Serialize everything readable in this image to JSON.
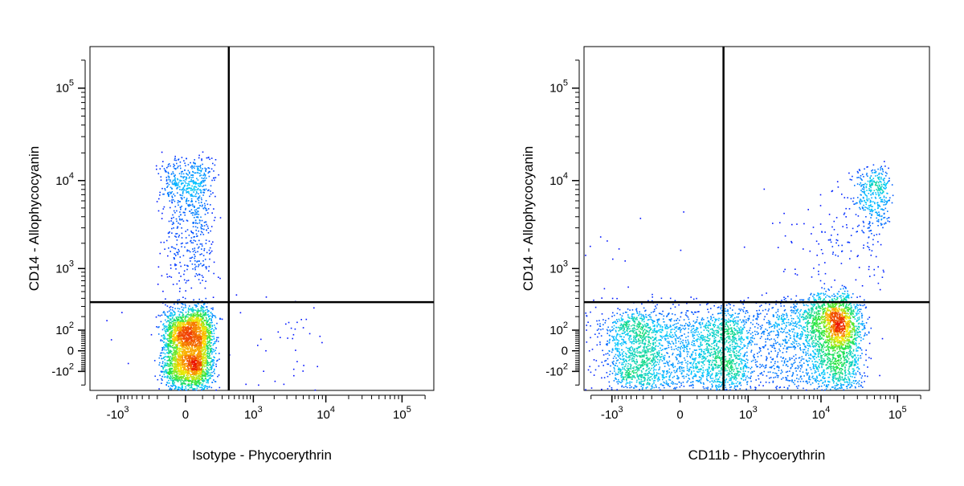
{
  "chart_data": [
    {
      "type": "scatter",
      "subtype": "density-flow-cytometry",
      "xlabel": "Isotype - Phycoerythrin",
      "ylabel": "CD14 - Allophycocyanin",
      "x_scale": "biexponential",
      "y_scale": "biexponential",
      "x_ticks": [
        {
          "value": -1000,
          "base": "-10",
          "exp": "3"
        },
        {
          "value": 0,
          "base": "0",
          "exp": ""
        },
        {
          "value": 1000,
          "base": "10",
          "exp": "3"
        },
        {
          "value": 10000,
          "base": "10",
          "exp": "4"
        },
        {
          "value": 100000,
          "base": "10",
          "exp": "5"
        }
      ],
      "y_ticks": [
        {
          "value": -100,
          "base": "-10",
          "exp": "2"
        },
        {
          "value": 0,
          "base": "0",
          "exp": ""
        },
        {
          "value": 100,
          "base": "10",
          "exp": "2"
        },
        {
          "value": 1000,
          "base": "10",
          "exp": "3"
        },
        {
          "value": 10000,
          "base": "10",
          "exp": "4"
        },
        {
          "value": 100000,
          "base": "10",
          "exp": "5"
        }
      ],
      "quadrant_gate": {
        "x": 400,
        "y": 350
      },
      "populations": [
        {
          "name": "",
          "x_center": 20,
          "y_center": 15,
          "x_spread": 80,
          "y_spread": 120,
          "count": 3200
        },
        {
          "name": "",
          "x_center": 20,
          "y_center": 7500,
          "x_spread": 90,
          "y_spread": 4500,
          "count": 650
        },
        {
          "name": "",
          "x_center": 20,
          "y_center": 1200,
          "x_spread": 80,
          "y_spread": 900,
          "count": 180
        },
        {
          "name": "",
          "x_center": 2500,
          "y_center": 60,
          "x_spread": 2500,
          "y_spread": 140,
          "count": 45
        }
      ]
    },
    {
      "type": "scatter",
      "subtype": "density-flow-cytometry",
      "xlabel": "CD11b - Phycoerythrin",
      "ylabel": "CD14 - Allophycocyanin",
      "x_scale": "biexponential",
      "y_scale": "biexponential",
      "x_ticks": [
        {
          "value": -1000,
          "base": "-10",
          "exp": "3"
        },
        {
          "value": 0,
          "base": "0",
          "exp": ""
        },
        {
          "value": 1000,
          "base": "10",
          "exp": "3"
        },
        {
          "value": 10000,
          "base": "10",
          "exp": "4"
        },
        {
          "value": 100000,
          "base": "10",
          "exp": "5"
        }
      ],
      "y_ticks": [
        {
          "value": -100,
          "base": "-10",
          "exp": "2"
        },
        {
          "value": 0,
          "base": "0",
          "exp": ""
        },
        {
          "value": 100,
          "base": "10",
          "exp": "2"
        },
        {
          "value": 1000,
          "base": "10",
          "exp": "3"
        },
        {
          "value": 10000,
          "base": "10",
          "exp": "4"
        },
        {
          "value": 100000,
          "base": "10",
          "exp": "5"
        }
      ],
      "quadrant_gate": {
        "x": 400,
        "y": 350
      },
      "populations": [
        {
          "name": "",
          "x_center": 0,
          "y_center": 0,
          "x_spread": 450,
          "y_spread": 130,
          "count": 2600
        },
        {
          "name": "",
          "x_center": 13000,
          "y_center": 90,
          "x_spread": 9000,
          "y_spread": 160,
          "count": 2800
        },
        {
          "name": "",
          "x_center": 48000,
          "y_center": 7000,
          "x_spread": 15000,
          "y_spread": 3500,
          "count": 450
        },
        {
          "name": "",
          "x_center": 8000,
          "y_center": 1200,
          "x_spread": 12000,
          "y_spread": 1600,
          "count": 180
        },
        {
          "name": "",
          "x_center": 2000,
          "y_center": 30,
          "x_spread": 1800,
          "y_spread": 130,
          "count": 350
        }
      ]
    }
  ]
}
